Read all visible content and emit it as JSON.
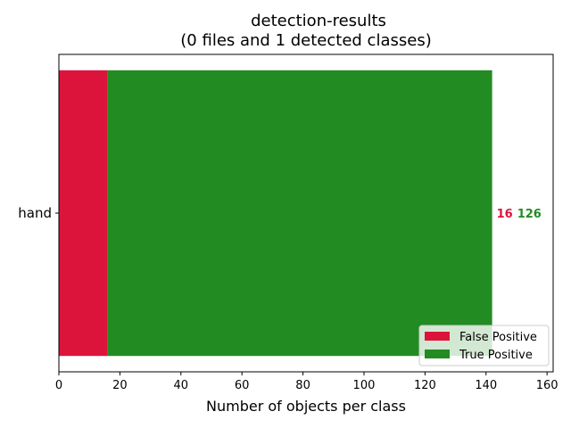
{
  "chart_data": {
    "type": "bar",
    "orientation": "horizontal",
    "stacked": true,
    "title": "detection-results",
    "subtitle": "(0 files and 1 detected classes)",
    "xlabel": "Number of objects per class",
    "ylabel": "",
    "categories": [
      "hand"
    ],
    "xlim": [
      0,
      162
    ],
    "xticks": [
      0,
      20,
      40,
      60,
      80,
      100,
      120,
      140,
      160
    ],
    "grid": false,
    "legend_position": "bottom-right",
    "series": [
      {
        "name": "False Positive",
        "color": "#dc143c",
        "values": [
          16
        ]
      },
      {
        "name": "True Positive",
        "color": "#228b22",
        "values": [
          126
        ]
      }
    ]
  }
}
